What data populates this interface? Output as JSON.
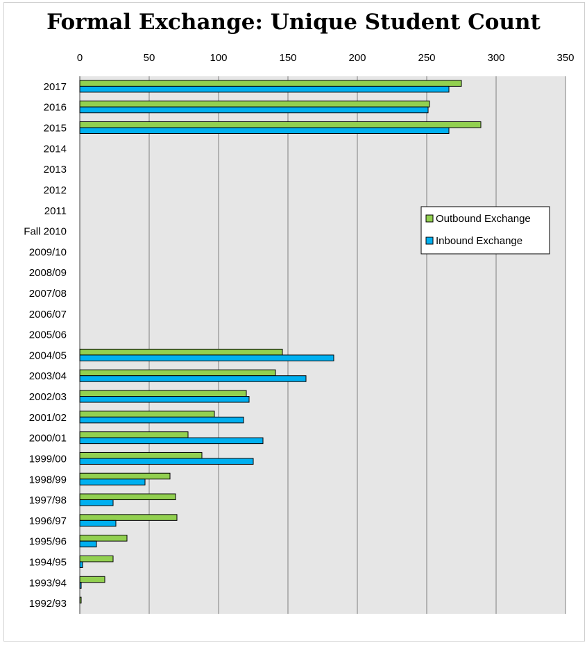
{
  "chart_data": {
    "type": "bar",
    "orientation": "horizontal",
    "title": "Formal Exchange: Unique Student Count",
    "xlim": [
      0,
      350
    ],
    "xticks": [
      0,
      50,
      100,
      150,
      200,
      250,
      300,
      350
    ],
    "grid": true,
    "legend_position": "right",
    "categories": [
      "2017",
      "2016",
      "2015",
      "2014",
      "2013",
      "2012",
      "2011",
      "Fall 2010",
      "2009/10",
      "2008/09",
      "2007/08",
      "2006/07",
      "2005/06",
      "2004/05",
      "2003/04",
      "2002/03",
      "2001/02",
      "2000/01",
      "1999/00",
      "1998/99",
      "1997/98",
      "1996/97",
      "1995/96",
      "1994/95",
      "1993/94",
      "1992/93"
    ],
    "series": [
      {
        "name": "Outbound Exchange",
        "color": "#92d050",
        "values": [
          275,
          252,
          289,
          null,
          null,
          null,
          null,
          null,
          null,
          null,
          null,
          null,
          null,
          146,
          141,
          120,
          97,
          78,
          88,
          65,
          69,
          70,
          34,
          24,
          18,
          1
        ]
      },
      {
        "name": "Inbound Exchange",
        "color": "#00b0f0",
        "values": [
          266,
          251,
          266,
          null,
          null,
          null,
          null,
          null,
          null,
          null,
          null,
          null,
          null,
          183,
          163,
          122,
          118,
          132,
          125,
          47,
          24,
          26,
          12,
          2,
          1,
          null
        ]
      }
    ]
  },
  "colors": {
    "plot_bg": "#e6e6e6",
    "grid": "#7f7f7f"
  }
}
